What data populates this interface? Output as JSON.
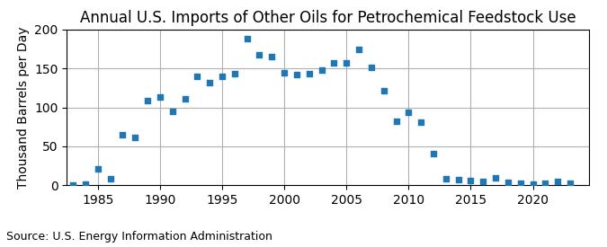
{
  "chart_data": {
    "type": "scatter",
    "title": "Annual U.S. Imports of Other Oils for Petrochemical Feedstock Use",
    "y_label": "Thousand Barrels per Day",
    "source": "Source: U.S. Energy Information Administration",
    "x": [
      1983,
      1984,
      1985,
      1986,
      1987,
      1988,
      1989,
      1990,
      1991,
      1992,
      1993,
      1994,
      1995,
      1996,
      1997,
      1998,
      1999,
      2000,
      2001,
      2002,
      2003,
      2004,
      2005,
      2006,
      2007,
      2008,
      2009,
      2010,
      2011,
      2012,
      2013,
      2014,
      2015,
      2016,
      2017,
      2018,
      2019,
      2020,
      2021,
      2022,
      2023
    ],
    "values": [
      0,
      1,
      21,
      8,
      65,
      62,
      109,
      113,
      95,
      111,
      140,
      132,
      140,
      143,
      189,
      168,
      165,
      145,
      142,
      144,
      148,
      157,
      157,
      175,
      151,
      122,
      82,
      94,
      81,
      41,
      8,
      7,
      6,
      5,
      10,
      4,
      3,
      2,
      3,
      5,
      3
    ],
    "marker": "square",
    "xlim": [
      1982.5,
      2024.5
    ],
    "xticks": [
      1985,
      1990,
      1995,
      2000,
      2005,
      2010,
      2015,
      2020
    ],
    "ylim": [
      0,
      200
    ],
    "yticks": [
      0,
      50,
      100,
      150,
      200
    ],
    "grid": true
  }
}
